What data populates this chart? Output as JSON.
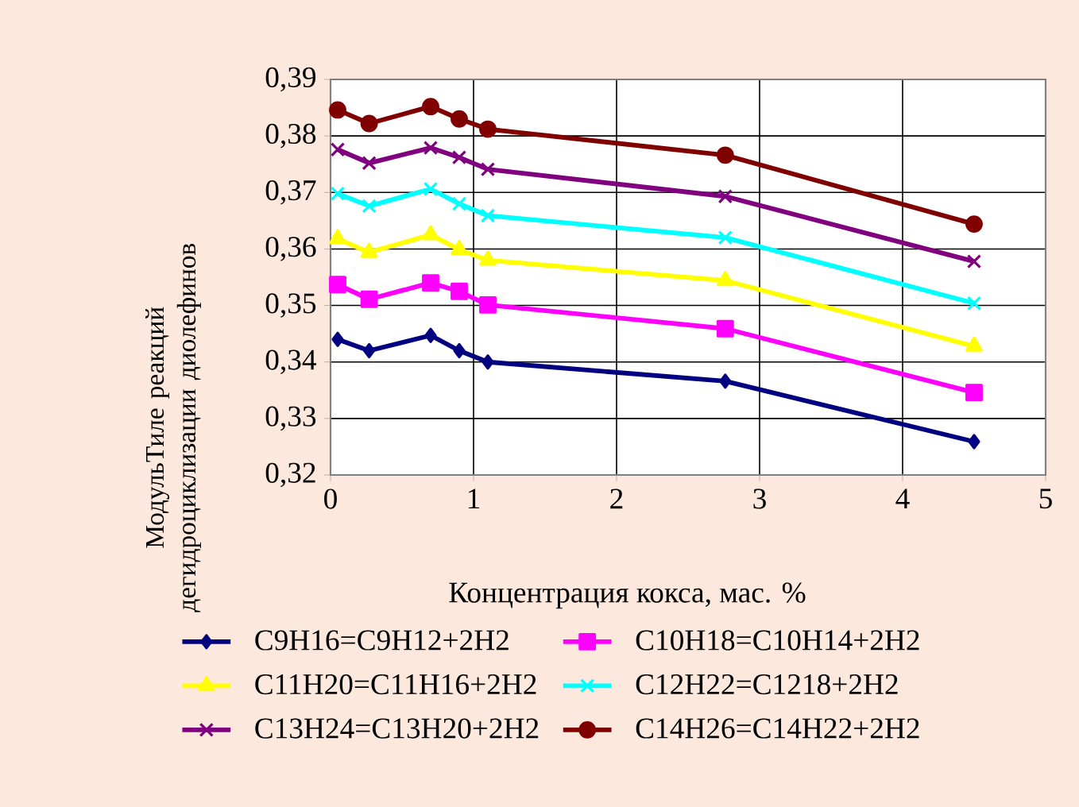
{
  "chart_data": {
    "type": "line",
    "xlabel": "Концентрация кокса, мас. %",
    "ylabel": "МодульТиле реакций дегидроциклизации диолефинов",
    "x": [
      0.05,
      0.27,
      0.7,
      0.9,
      1.1,
      2.76,
      4.5
    ],
    "series": [
      {
        "name": "C9H16=C9H12+2H2",
        "color": "#000080",
        "marker": "diamond",
        "values": [
          0.344,
          0.342,
          0.3447,
          0.342,
          0.34,
          0.3366,
          0.3259
        ]
      },
      {
        "name": "C10H18=C10H14+2H2",
        "color": "#ff00ff",
        "marker": "square",
        "values": [
          0.3537,
          0.3511,
          0.354,
          0.3525,
          0.3501,
          0.3459,
          0.3346
        ]
      },
      {
        "name": "C11H20=C11H16+2H2",
        "color": "#ffff00",
        "marker": "triangle",
        "values": [
          0.3618,
          0.3594,
          0.3625,
          0.3599,
          0.358,
          0.3544,
          0.3428
        ]
      },
      {
        "name": "C12H22=C1218+2H2",
        "color": "#00ffff",
        "marker": "cross",
        "values": [
          0.3698,
          0.3676,
          0.3706,
          0.368,
          0.3659,
          0.362,
          0.3504
        ]
      },
      {
        "name": "C13H24=C13H20+2H2",
        "color": "#800080",
        "marker": "cross",
        "values": [
          0.3776,
          0.3752,
          0.3779,
          0.3762,
          0.3741,
          0.3693,
          0.3578
        ]
      },
      {
        "name": "C14H26=C14H22+2H2",
        "color": "#800000",
        "marker": "circle",
        "values": [
          0.3846,
          0.3822,
          0.3852,
          0.383,
          0.3812,
          0.3766,
          0.3644
        ]
      }
    ],
    "xlim": [
      0,
      5
    ],
    "xticks": [
      0,
      1,
      2,
      3,
      4,
      5
    ],
    "ylim": [
      0.32,
      0.39
    ],
    "yticks": [
      {
        "value": 0.32,
        "label": "0,32"
      },
      {
        "value": 0.33,
        "label": "0,33"
      },
      {
        "value": 0.34,
        "label": "0,34"
      },
      {
        "value": 0.35,
        "label": "0,35"
      },
      {
        "value": 0.36,
        "label": "0,36"
      },
      {
        "value": 0.37,
        "label": "0,37"
      },
      {
        "value": 0.38,
        "label": "0,38"
      },
      {
        "value": 0.39,
        "label": "0,39"
      }
    ],
    "grid": true,
    "legend": "bottom",
    "line_style": "solid"
  }
}
